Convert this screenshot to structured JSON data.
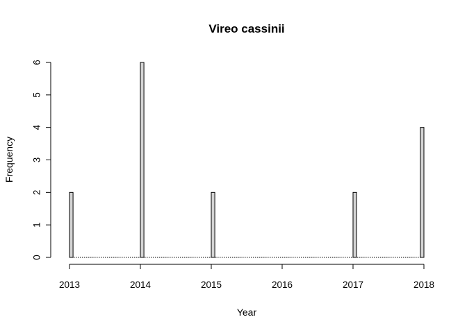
{
  "chart_data": {
    "type": "bar",
    "title": "Vireo cassinii",
    "xlabel": "Year",
    "ylabel": "Frequency",
    "xlim": [
      2013,
      2018
    ],
    "ylim": [
      0,
      6
    ],
    "x_ticks": [
      "2013",
      "2014",
      "2015",
      "2016",
      "2017",
      "2018"
    ],
    "y_ticks": [
      "0",
      "1",
      "2",
      "3",
      "4",
      "5",
      "6"
    ],
    "bin_width": 0.05,
    "bars": [
      {
        "x": 2013.0,
        "value": 2
      },
      {
        "x": 2014.0,
        "value": 6
      },
      {
        "x": 2015.0,
        "value": 2
      },
      {
        "x": 2017.0,
        "value": 2
      },
      {
        "x": 2018.0,
        "value": 4
      }
    ],
    "grid": false,
    "colors": {
      "bar_fill": "#d3d3d3",
      "bar_stroke": "#000000"
    }
  }
}
